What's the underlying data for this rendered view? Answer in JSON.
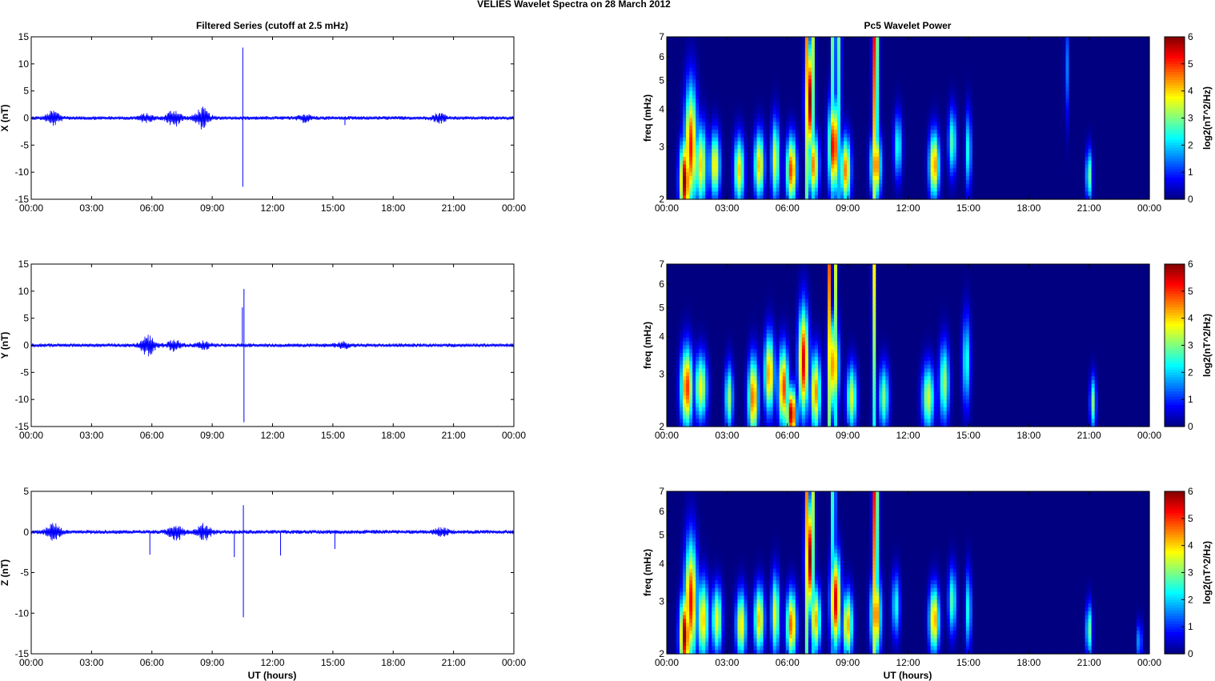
{
  "figure": {
    "title": "VELIES Wavelet Spectra on 28 March     2012",
    "left_title": "Filtered Series (cutoff at 2.5 mHz)",
    "right_title": "Pc5 Wavelet Power",
    "xlabel": "UT (hours)"
  },
  "colors": {
    "series": "#0000ff",
    "axis": "#000000"
  },
  "colormap": "jet",
  "chart_data": [
    {
      "type": "line",
      "name": "X filtered",
      "ylabel": "X (nT)",
      "xlim": [
        0,
        24
      ],
      "ylim": [
        -15,
        15
      ],
      "x_ticks": [
        "00:00",
        "03:00",
        "06:00",
        "09:00",
        "12:00",
        "15:00",
        "18:00",
        "21:00",
        "00:00"
      ],
      "y_ticks": [
        -15,
        -10,
        -5,
        0,
        5,
        10,
        15
      ],
      "noise_level": 0.35,
      "bursts": [
        {
          "t": 1.1,
          "amp": 1.2
        },
        {
          "t": 5.7,
          "amp": 0.6
        },
        {
          "t": 7.1,
          "amp": 1.5
        },
        {
          "t": 8.5,
          "amp": 1.8
        },
        {
          "t": 13.6,
          "amp": 0.6
        },
        {
          "t": 20.3,
          "amp": 0.8
        }
      ],
      "spikes": [
        {
          "t": 10.52,
          "max": 13,
          "min": -12.7
        },
        {
          "t": 15.6,
          "max": 0.2,
          "min": -1.3
        },
        {
          "t": 20.4,
          "max": 0.8,
          "min": -1.0
        }
      ]
    },
    {
      "type": "line",
      "name": "Y filtered",
      "ylabel": "Y (nT)",
      "xlim": [
        0,
        24
      ],
      "ylim": [
        -15,
        15
      ],
      "x_ticks": [
        "00:00",
        "03:00",
        "06:00",
        "09:00",
        "12:00",
        "15:00",
        "18:00",
        "21:00",
        "00:00"
      ],
      "y_ticks": [
        -15,
        -10,
        -5,
        0,
        5,
        10,
        15
      ],
      "noise_level": 0.35,
      "bursts": [
        {
          "t": 5.8,
          "amp": 1.8
        },
        {
          "t": 7.1,
          "amp": 0.9
        },
        {
          "t": 8.6,
          "amp": 0.6
        },
        {
          "t": 15.5,
          "amp": 0.5
        }
      ],
      "spikes": [
        {
          "t": 10.58,
          "max": 10.4,
          "min": -14.2
        },
        {
          "t": 10.5,
          "max": 7.0,
          "min": 0
        }
      ]
    },
    {
      "type": "line",
      "name": "Z filtered",
      "ylabel": "Z (nT)",
      "xlim": [
        0,
        24
      ],
      "ylim": [
        -15,
        5
      ],
      "x_ticks": [
        "00:00",
        "03:00",
        "06:00",
        "09:00",
        "12:00",
        "15:00",
        "18:00",
        "21:00",
        "00:00"
      ],
      "y_ticks": [
        -15,
        -10,
        -5,
        0,
        5
      ],
      "noise_level": 0.25,
      "bursts": [
        {
          "t": 1.1,
          "amp": 1.0
        },
        {
          "t": 7.2,
          "amp": 1.0
        },
        {
          "t": 8.6,
          "amp": 0.9
        },
        {
          "t": 20.4,
          "amp": 0.4
        }
      ],
      "spikes": [
        {
          "t": 10.55,
          "max": 3.3,
          "min": -10.5
        },
        {
          "t": 5.9,
          "max": 0,
          "min": -2.8
        },
        {
          "t": 10.1,
          "max": 0,
          "min": -3.1
        },
        {
          "t": 12.4,
          "max": 0,
          "min": -2.9
        },
        {
          "t": 15.1,
          "max": 0,
          "min": -2.1
        }
      ]
    },
    {
      "type": "heatmap",
      "name": "X wavelet power",
      "ylabel": "freq (mHz)",
      "yscale": "log",
      "xlim": [
        0,
        24
      ],
      "ylim": [
        2,
        7
      ],
      "x_ticks": [
        "00:00",
        "03:00",
        "06:00",
        "09:00",
        "12:00",
        "15:00",
        "18:00",
        "21:00",
        "00:00"
      ],
      "y_ticks": [
        2,
        3,
        4,
        5,
        6,
        7
      ],
      "colorbar": {
        "label": "log2(nT^2/Hz)",
        "range": [
          0,
          6
        ],
        "ticks": [
          0,
          1,
          2,
          3,
          4,
          5,
          6
        ]
      },
      "blobs": [
        {
          "t": 0.9,
          "f": 2.3,
          "v": 6.0,
          "w": 0.25,
          "h": 0.3
        },
        {
          "t": 1.2,
          "f": 3.0,
          "v": 5.2,
          "w": 0.3,
          "h": 0.45
        },
        {
          "t": 1.7,
          "f": 2.6,
          "v": 4.0,
          "w": 0.3,
          "h": 0.3
        },
        {
          "t": 2.4,
          "f": 2.6,
          "v": 4.0,
          "w": 0.25,
          "h": 0.25
        },
        {
          "t": 3.6,
          "f": 2.5,
          "v": 4.0,
          "w": 0.25,
          "h": 0.25
        },
        {
          "t": 4.6,
          "f": 2.6,
          "v": 4.2,
          "w": 0.25,
          "h": 0.25
        },
        {
          "t": 5.4,
          "f": 2.7,
          "v": 3.8,
          "w": 0.2,
          "h": 0.3
        },
        {
          "t": 6.2,
          "f": 2.5,
          "v": 5.0,
          "w": 0.25,
          "h": 0.25
        },
        {
          "t": 7.1,
          "f": 4.3,
          "v": 6.0,
          "w": 0.2,
          "h": 0.4
        },
        {
          "t": 7.3,
          "f": 2.6,
          "v": 4.5,
          "w": 0.25,
          "h": 0.25
        },
        {
          "t": 8.3,
          "f": 3.0,
          "v": 5.5,
          "w": 0.25,
          "h": 0.35
        },
        {
          "t": 8.9,
          "f": 2.5,
          "v": 4.5,
          "w": 0.25,
          "h": 0.25
        },
        {
          "t": 10.4,
          "f": 2.6,
          "v": 4.8,
          "w": 0.25,
          "h": 0.25
        },
        {
          "t": 11.5,
          "f": 3.0,
          "v": 2.5,
          "w": 0.2,
          "h": 0.25
        },
        {
          "t": 13.3,
          "f": 2.6,
          "v": 4.5,
          "w": 0.25,
          "h": 0.25
        },
        {
          "t": 14.2,
          "f": 3.1,
          "v": 2.8,
          "w": 0.2,
          "h": 0.25
        },
        {
          "t": 15.0,
          "f": 2.9,
          "v": 2.5,
          "w": 0.15,
          "h": 0.3
        },
        {
          "t": 21.0,
          "f": 2.4,
          "v": 3.0,
          "w": 0.15,
          "h": 0.2
        },
        {
          "t": 19.9,
          "f": 5.5,
          "v": 1.5,
          "w": 0.1,
          "h": 0.4
        }
      ],
      "ridges": [
        {
          "t": 7.0,
          "v": 5.5
        },
        {
          "t": 7.3,
          "v": 3.5
        },
        {
          "t": 8.3,
          "v": 4.5
        },
        {
          "t": 8.6,
          "v": 3.5
        },
        {
          "t": 10.3,
          "v": 5.5
        },
        {
          "t": 10.5,
          "v": 3.0
        }
      ]
    },
    {
      "type": "heatmap",
      "name": "Y wavelet power",
      "ylabel": "freq (mHz)",
      "yscale": "log",
      "xlim": [
        0,
        24
      ],
      "ylim": [
        2,
        7
      ],
      "x_ticks": [
        "00:00",
        "03:00",
        "06:00",
        "09:00",
        "12:00",
        "15:00",
        "18:00",
        "21:00",
        "00:00"
      ],
      "y_ticks": [
        2,
        3,
        4,
        5,
        6,
        7
      ],
      "colorbar": {
        "label": "log2(nT^2/Hz)",
        "range": [
          0,
          6
        ],
        "ticks": [
          0,
          1,
          2,
          3,
          4,
          5,
          6
        ]
      },
      "blobs": [
        {
          "t": 1.0,
          "f": 2.7,
          "v": 5.0,
          "w": 0.3,
          "h": 0.3
        },
        {
          "t": 1.7,
          "f": 2.7,
          "v": 3.8,
          "w": 0.3,
          "h": 0.25
        },
        {
          "t": 3.1,
          "f": 2.5,
          "v": 3.2,
          "w": 0.2,
          "h": 0.25
        },
        {
          "t": 4.3,
          "f": 2.5,
          "v": 4.8,
          "w": 0.25,
          "h": 0.3
        },
        {
          "t": 5.1,
          "f": 3.0,
          "v": 4.5,
          "w": 0.25,
          "h": 0.3
        },
        {
          "t": 5.8,
          "f": 2.7,
          "v": 5.0,
          "w": 0.25,
          "h": 0.3
        },
        {
          "t": 6.2,
          "f": 2.2,
          "v": 5.8,
          "w": 0.25,
          "h": 0.2
        },
        {
          "t": 6.8,
          "f": 3.3,
          "v": 5.5,
          "w": 0.25,
          "h": 0.4
        },
        {
          "t": 7.4,
          "f": 2.6,
          "v": 4.5,
          "w": 0.25,
          "h": 0.3
        },
        {
          "t": 8.3,
          "f": 3.2,
          "v": 4.6,
          "w": 0.25,
          "h": 0.35
        },
        {
          "t": 9.2,
          "f": 2.5,
          "v": 3.5,
          "w": 0.25,
          "h": 0.25
        },
        {
          "t": 10.8,
          "f": 2.5,
          "v": 3.0,
          "w": 0.25,
          "h": 0.25
        },
        {
          "t": 13.0,
          "f": 2.5,
          "v": 3.5,
          "w": 0.3,
          "h": 0.25
        },
        {
          "t": 13.8,
          "f": 2.8,
          "v": 3.2,
          "w": 0.25,
          "h": 0.3
        },
        {
          "t": 14.9,
          "f": 3.3,
          "v": 2.5,
          "w": 0.2,
          "h": 0.35
        },
        {
          "t": 21.2,
          "f": 2.4,
          "v": 3.0,
          "w": 0.15,
          "h": 0.2
        }
      ],
      "ridges": [
        {
          "t": 8.1,
          "v": 5.0
        },
        {
          "t": 8.4,
          "v": 3.5
        },
        {
          "t": 10.3,
          "v": 4.0
        }
      ]
    },
    {
      "type": "heatmap",
      "name": "Z wavelet power",
      "ylabel": "freq (mHz)",
      "yscale": "log",
      "xlim": [
        0,
        24
      ],
      "ylim": [
        2,
        7
      ],
      "x_ticks": [
        "00:00",
        "03:00",
        "06:00",
        "09:00",
        "12:00",
        "15:00",
        "18:00",
        "21:00",
        "00:00"
      ],
      "y_ticks": [
        2,
        3,
        4,
        5,
        6,
        7
      ],
      "colorbar": {
        "label": "log2(nT^2/Hz)",
        "range": [
          0,
          6
        ],
        "ticks": [
          0,
          1,
          2,
          3,
          4,
          5,
          6
        ]
      },
      "blobs": [
        {
          "t": 0.9,
          "f": 2.3,
          "v": 6.0,
          "w": 0.25,
          "h": 0.3
        },
        {
          "t": 1.2,
          "f": 3.0,
          "v": 5.3,
          "w": 0.3,
          "h": 0.45
        },
        {
          "t": 1.8,
          "f": 2.6,
          "v": 4.0,
          "w": 0.3,
          "h": 0.3
        },
        {
          "t": 2.5,
          "f": 2.6,
          "v": 3.8,
          "w": 0.25,
          "h": 0.25
        },
        {
          "t": 3.7,
          "f": 2.5,
          "v": 4.0,
          "w": 0.25,
          "h": 0.25
        },
        {
          "t": 4.6,
          "f": 2.6,
          "v": 4.2,
          "w": 0.25,
          "h": 0.25
        },
        {
          "t": 5.4,
          "f": 2.7,
          "v": 3.8,
          "w": 0.2,
          "h": 0.3
        },
        {
          "t": 6.2,
          "f": 2.5,
          "v": 4.8,
          "w": 0.25,
          "h": 0.25
        },
        {
          "t": 7.1,
          "f": 4.2,
          "v": 6.0,
          "w": 0.2,
          "h": 0.4
        },
        {
          "t": 7.4,
          "f": 2.6,
          "v": 4.3,
          "w": 0.25,
          "h": 0.25
        },
        {
          "t": 8.4,
          "f": 3.0,
          "v": 5.5,
          "w": 0.25,
          "h": 0.35
        },
        {
          "t": 9.0,
          "f": 2.5,
          "v": 4.3,
          "w": 0.25,
          "h": 0.25
        },
        {
          "t": 10.4,
          "f": 2.7,
          "v": 4.8,
          "w": 0.25,
          "h": 0.3
        },
        {
          "t": 11.4,
          "f": 2.9,
          "v": 2.4,
          "w": 0.2,
          "h": 0.25
        },
        {
          "t": 13.3,
          "f": 2.6,
          "v": 4.4,
          "w": 0.25,
          "h": 0.25
        },
        {
          "t": 14.2,
          "f": 3.0,
          "v": 2.8,
          "w": 0.2,
          "h": 0.25
        },
        {
          "t": 15.0,
          "f": 2.8,
          "v": 2.5,
          "w": 0.15,
          "h": 0.3
        },
        {
          "t": 21.0,
          "f": 2.4,
          "v": 3.0,
          "w": 0.15,
          "h": 0.2
        },
        {
          "t": 23.5,
          "f": 2.2,
          "v": 2.0,
          "w": 0.12,
          "h": 0.15
        }
      ],
      "ridges": [
        {
          "t": 7.0,
          "v": 5.5
        },
        {
          "t": 7.3,
          "v": 3.5
        },
        {
          "t": 8.3,
          "v": 4.0
        },
        {
          "t": 10.3,
          "v": 5.5
        },
        {
          "t": 10.5,
          "v": 3.0
        }
      ]
    }
  ]
}
